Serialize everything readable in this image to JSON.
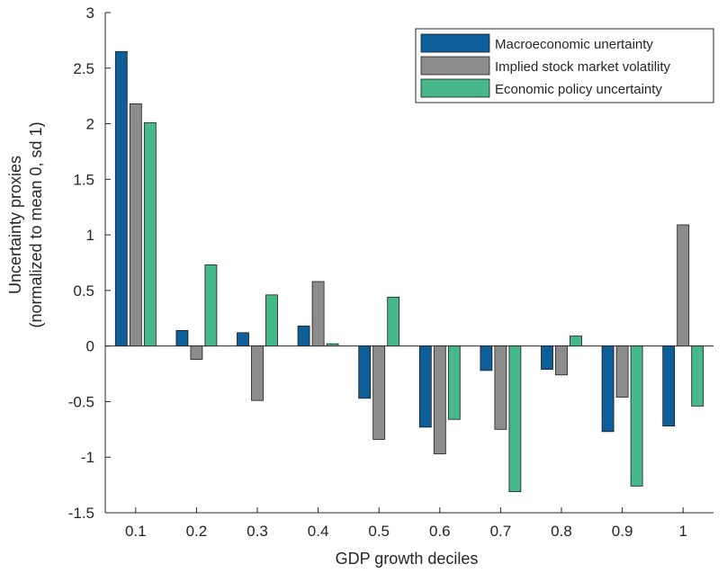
{
  "chart_data": {
    "type": "bar",
    "xlabel": "GDP growth deciles",
    "ylabel_lines": [
      "Uncertainty proxies",
      "(normalized to mean 0, sd 1)"
    ],
    "categories": [
      "0.1",
      "0.2",
      "0.3",
      "0.4",
      "0.5",
      "0.6",
      "0.7",
      "0.8",
      "0.9",
      "1"
    ],
    "ylim": [
      -1.5,
      3
    ],
    "yticks": [
      "-1.5",
      "-1",
      "-0.5",
      "0",
      "0.5",
      "1",
      "1.5",
      "2",
      "2.5",
      "3"
    ],
    "legend_position": "top-right",
    "series": [
      {
        "name": "Macroeconomic unertainty",
        "color": "#0e5e99",
        "values": [
          2.65,
          0.14,
          0.12,
          0.18,
          -0.47,
          -0.73,
          -0.22,
          -0.21,
          -0.77,
          -0.72
        ]
      },
      {
        "name": "Implied stock market volatility",
        "color": "#8c8c8c",
        "values": [
          2.18,
          -0.12,
          -0.49,
          0.58,
          -0.84,
          -0.97,
          -0.75,
          -0.26,
          -0.46,
          1.09
        ]
      },
      {
        "name": "Economic policy uncertainty",
        "color": "#47b88a",
        "values": [
          2.01,
          0.73,
          0.46,
          0.02,
          0.44,
          -0.66,
          -1.31,
          0.09,
          -1.26,
          -0.54
        ]
      }
    ]
  }
}
